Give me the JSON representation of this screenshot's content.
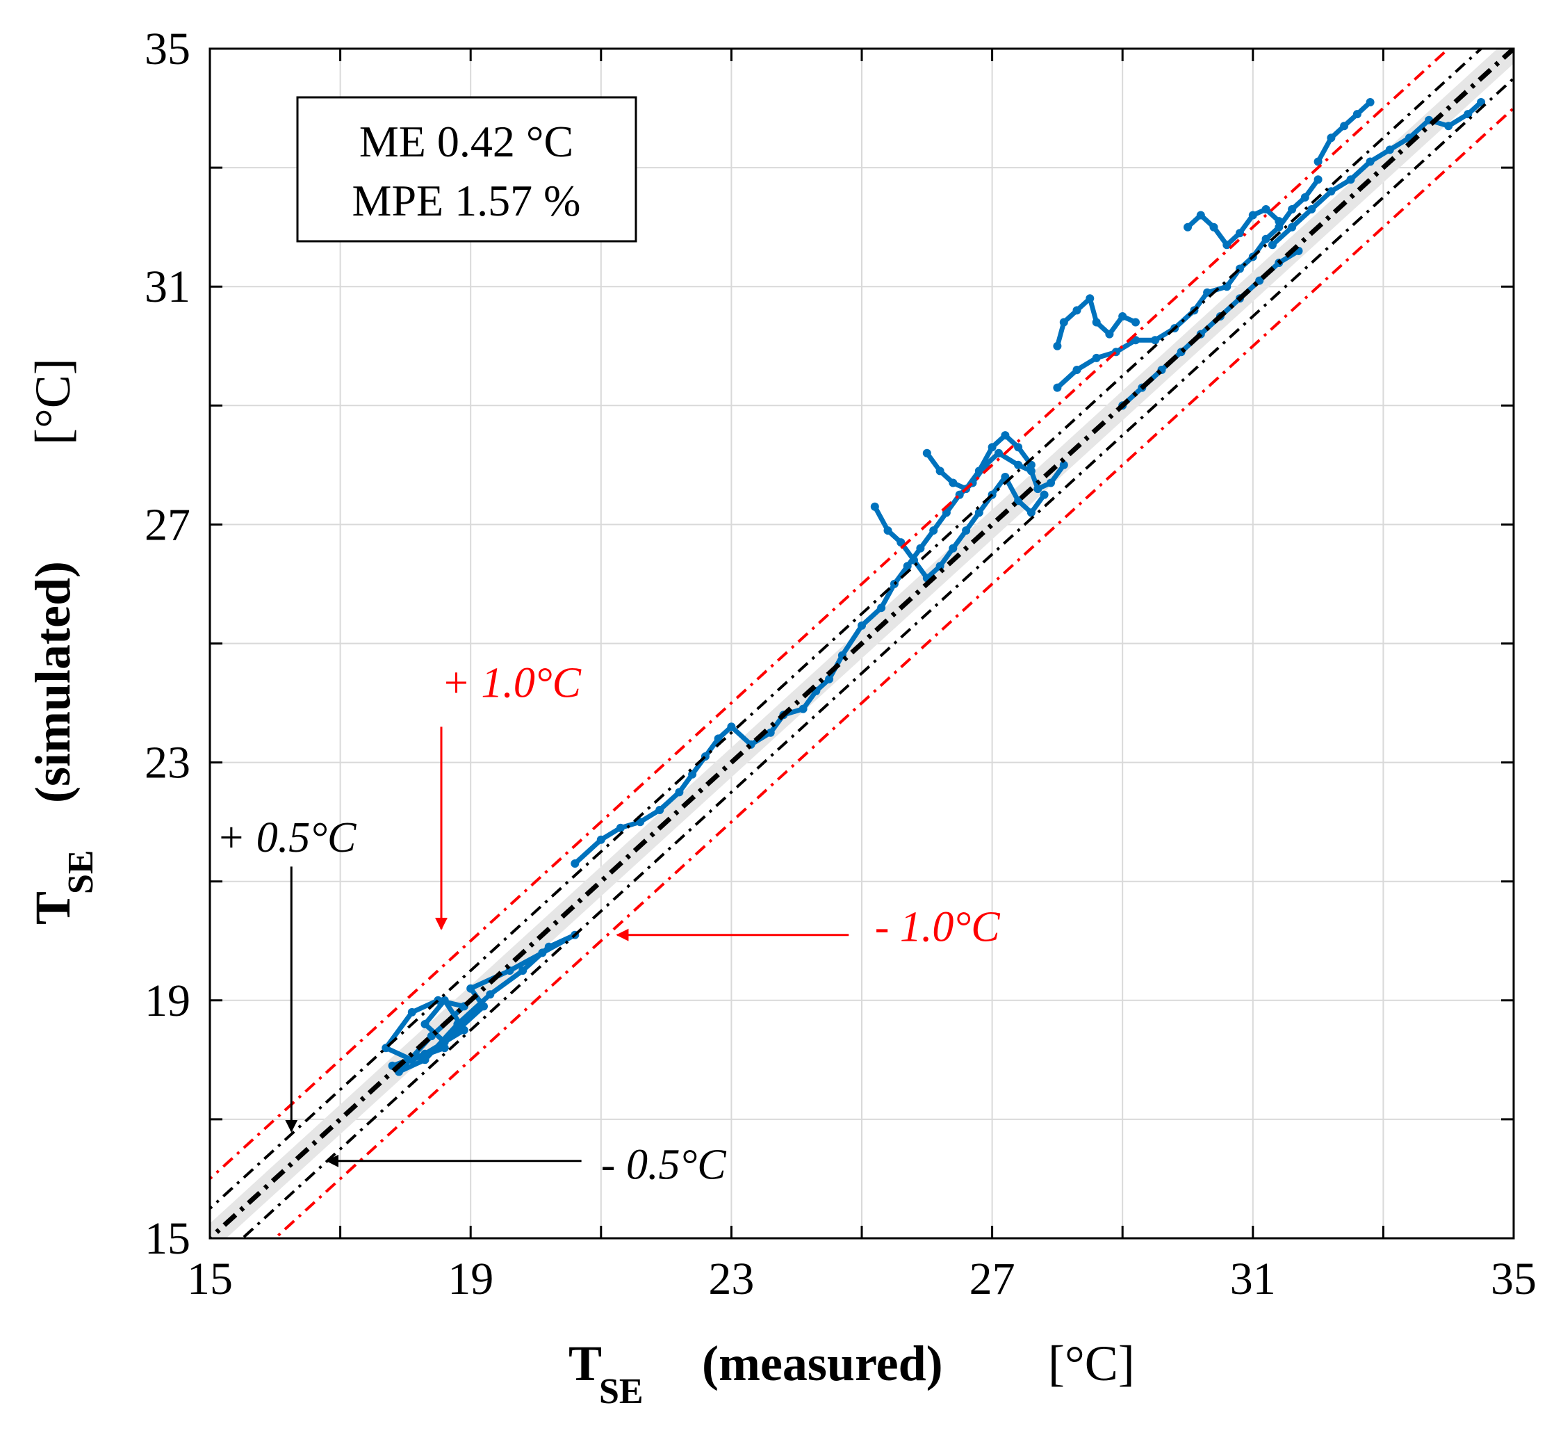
{
  "chart_data": {
    "type": "scatter",
    "xlabel": "T",
    "xlabel_sub": "SE",
    "xlabel_qual": "(measured)",
    "xlabel_unit": "[°C]",
    "ylabel": "T",
    "ylabel_sub": "SE",
    "ylabel_qual": "(simulated)",
    "ylabel_unit": "[°C]",
    "xlim": [
      15,
      35
    ],
    "ylim": [
      15,
      35
    ],
    "xticks": [
      15,
      19,
      23,
      27,
      31,
      35
    ],
    "yticks": [
      15,
      19,
      23,
      27,
      31,
      35
    ],
    "grid_step": 2,
    "stats": [
      "ME 0.42 °C",
      "MPE 1.57 %"
    ],
    "reference_lines": [
      {
        "name": "1:1",
        "offset": 0,
        "color": "#000000"
      },
      {
        "name": "+0.5",
        "offset": 0.5,
        "color": "#000000"
      },
      {
        "name": "-0.5",
        "offset": -0.5,
        "color": "#000000"
      },
      {
        "name": "+1.0",
        "offset": 1.0,
        "color": "#ff0000"
      },
      {
        "name": "-1.0",
        "offset": -1.0,
        "color": "#ff0000"
      }
    ],
    "band_halfwidth": 0.25,
    "annotations": [
      {
        "text": "+ 1.0°C",
        "color": "#ff0000",
        "label_x": 18.55,
        "label_y": 24.1,
        "arrow_from": [
          18.55,
          23.6
        ],
        "arrow_to": [
          18.55,
          20.2
        ]
      },
      {
        "text": "- 1.0°C",
        "color": "#ff0000",
        "label_x": 25.2,
        "label_y": 20.0,
        "arrow_from": [
          24.8,
          20.1
        ],
        "arrow_to": [
          21.25,
          20.1
        ]
      },
      {
        "text": "+ 0.5°C",
        "color": "#000000",
        "label_x": 15.1,
        "label_y": 21.5,
        "arrow_from": [
          16.25,
          21.25
        ],
        "arrow_to": [
          16.25,
          16.8
        ]
      },
      {
        "text": "- 0.5°C",
        "color": "#000000",
        "label_x": 21.0,
        "label_y": 16.0,
        "arrow_from": [
          20.7,
          16.3
        ],
        "arrow_to": [
          16.8,
          16.3
        ]
      }
    ],
    "series": [
      {
        "name": "T_SE",
        "color": "#0072bd",
        "segments": [
          [
            [
              17.8,
              17.9
            ],
            [
              18.3,
              18.1
            ],
            [
              18.9,
              18.5
            ],
            [
              18.6,
              19.0
            ],
            [
              18.3,
              18.6
            ],
            [
              18.6,
              18.3
            ],
            [
              19.2,
              18.9
            ],
            [
              19.0,
              19.2
            ],
            [
              19.6,
              19.5
            ],
            [
              20.1,
              19.8
            ],
            [
              20.6,
              20.1
            ],
            [
              20.2,
              19.9
            ],
            [
              19.8,
              19.5
            ],
            [
              19.3,
              19.1
            ],
            [
              18.8,
              18.6
            ],
            [
              18.3,
              18.0
            ],
            [
              17.9,
              17.8
            ],
            [
              18.4,
              18.4
            ],
            [
              18.9,
              18.9
            ],
            [
              18.5,
              19.0
            ],
            [
              18.1,
              18.8
            ],
            [
              17.7,
              18.2
            ],
            [
              18.1,
              18.0
            ],
            [
              18.6,
              18.2
            ]
          ],
          [
            [
              20.6,
              21.3
            ],
            [
              21.0,
              21.7
            ],
            [
              21.3,
              21.9
            ],
            [
              21.6,
              22.0
            ],
            [
              21.9,
              22.2
            ],
            [
              22.2,
              22.5
            ],
            [
              22.4,
              22.8
            ],
            [
              22.6,
              23.1
            ],
            [
              22.8,
              23.4
            ],
            [
              23.0,
              23.6
            ],
            [
              23.3,
              23.3
            ],
            [
              23.6,
              23.5
            ],
            [
              23.8,
              23.8
            ],
            [
              24.1,
              23.9
            ],
            [
              24.3,
              24.2
            ],
            [
              24.5,
              24.4
            ],
            [
              24.7,
              24.8
            ],
            [
              25.0,
              25.3
            ],
            [
              25.3,
              25.6
            ],
            [
              25.5,
              26.0
            ],
            [
              25.7,
              26.3
            ],
            [
              25.9,
              26.6
            ],
            [
              26.1,
              26.9
            ],
            [
              26.3,
              27.2
            ],
            [
              26.5,
              27.5
            ],
            [
              26.7,
              27.7
            ],
            [
              26.9,
              28.0
            ],
            [
              27.1,
              28.2
            ],
            [
              27.4,
              28.0
            ],
            [
              27.6,
              27.9
            ],
            [
              27.7,
              27.6
            ],
            [
              27.9,
              27.7
            ],
            [
              28.1,
              28.0
            ]
          ],
          [
            [
              25.2,
              27.3
            ],
            [
              25.4,
              26.9
            ],
            [
              25.6,
              26.7
            ],
            [
              25.8,
              26.4
            ],
            [
              26.0,
              26.1
            ],
            [
              26.2,
              26.3
            ],
            [
              26.4,
              26.6
            ],
            [
              26.6,
              26.9
            ],
            [
              26.8,
              27.2
            ],
            [
              27.0,
              27.5
            ],
            [
              27.2,
              27.8
            ],
            [
              27.4,
              27.4
            ],
            [
              27.6,
              27.2
            ],
            [
              27.8,
              27.5
            ]
          ],
          [
            [
              26.0,
              28.2
            ],
            [
              26.2,
              27.9
            ],
            [
              26.4,
              27.7
            ],
            [
              26.6,
              27.6
            ],
            [
              26.8,
              27.9
            ],
            [
              27.0,
              28.3
            ],
            [
              27.2,
              28.5
            ],
            [
              27.4,
              28.3
            ],
            [
              27.6,
              28.0
            ]
          ],
          [
            [
              28.0,
              29.3
            ],
            [
              28.3,
              29.6
            ],
            [
              28.6,
              29.8
            ],
            [
              28.9,
              29.9
            ],
            [
              29.2,
              30.1
            ],
            [
              29.5,
              30.1
            ],
            [
              29.8,
              30.3
            ],
            [
              30.1,
              30.6
            ],
            [
              30.3,
              30.9
            ],
            [
              30.6,
              31.0
            ],
            [
              30.8,
              31.3
            ],
            [
              31.0,
              31.5
            ],
            [
              31.2,
              31.8
            ],
            [
              31.4,
              32.0
            ],
            [
              31.6,
              32.3
            ],
            [
              31.8,
              32.5
            ],
            [
              32.0,
              32.8
            ]
          ],
          [
            [
              28.0,
              30.0
            ],
            [
              28.1,
              30.4
            ],
            [
              28.3,
              30.6
            ],
            [
              28.5,
              30.8
            ],
            [
              28.6,
              30.4
            ],
            [
              28.8,
              30.2
            ],
            [
              29.0,
              30.5
            ],
            [
              29.2,
              30.4
            ]
          ],
          [
            [
              29.0,
              29.0
            ],
            [
              29.3,
              29.3
            ],
            [
              29.6,
              29.6
            ],
            [
              29.9,
              29.9
            ],
            [
              30.2,
              30.2
            ],
            [
              30.5,
              30.5
            ],
            [
              30.8,
              30.8
            ],
            [
              31.1,
              31.1
            ],
            [
              31.4,
              31.4
            ],
            [
              31.7,
              31.6
            ]
          ],
          [
            [
              30.0,
              32.0
            ],
            [
              30.2,
              32.2
            ],
            [
              30.4,
              32.0
            ],
            [
              30.6,
              31.7
            ],
            [
              30.8,
              31.9
            ],
            [
              31.0,
              32.2
            ],
            [
              31.2,
              32.3
            ],
            [
              31.4,
              32.1
            ]
          ],
          [
            [
              31.3,
              31.7
            ],
            [
              31.6,
              32.0
            ],
            [
              31.9,
              32.3
            ],
            [
              32.2,
              32.6
            ],
            [
              32.5,
              32.8
            ],
            [
              32.8,
              33.1
            ],
            [
              33.1,
              33.3
            ],
            [
              33.4,
              33.5
            ],
            [
              33.7,
              33.8
            ],
            [
              34.0,
              33.7
            ],
            [
              34.3,
              33.9
            ],
            [
              34.5,
              34.1
            ]
          ],
          [
            [
              32.0,
              33.1
            ],
            [
              32.2,
              33.5
            ],
            [
              32.4,
              33.7
            ],
            [
              32.6,
              33.9
            ],
            [
              32.8,
              34.1
            ]
          ]
        ]
      }
    ]
  }
}
